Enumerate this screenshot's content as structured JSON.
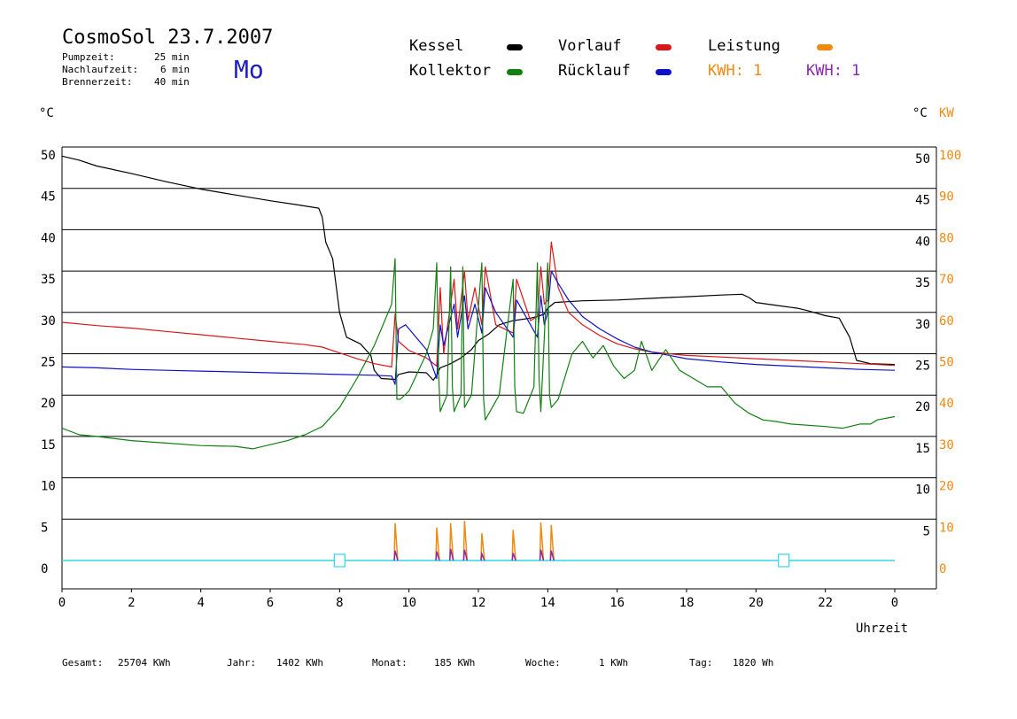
{
  "header": {
    "title": "CosmoSol 23.7.2007",
    "day": "Mo",
    "params": [
      {
        "label": "Pumpzeit:",
        "value": "25 min"
      },
      {
        "label": "Nachlaufzeit:",
        "value": "6 min"
      },
      {
        "label": "Brennerzeit:",
        "value": "40 min"
      }
    ]
  },
  "legend": {
    "kessel": "Kessel",
    "kollektor": "Kollektor",
    "vorlauf": "Vorlauf",
    "ruecklauf": "Rücklauf",
    "leistung": "Leistung",
    "kwh1": "KWH: 1",
    "kwh2": "KWH: 1"
  },
  "axes": {
    "left_unit": "°C",
    "right_unit": "°C",
    "right_unit2": "KW",
    "x_label": "Uhrzeit"
  },
  "colors": {
    "kessel": "#000000",
    "vorlauf": "#d81818",
    "ruecklauf": "#1010c8",
    "kollektor": "#108010",
    "leistung": "#f08a10",
    "leistung2": "#8a2aa8",
    "baseline": "#30d8e0"
  },
  "footer": {
    "gesamt_label": "Gesamt:",
    "gesamt_value": "25704 KWh",
    "jahr_label": "Jahr:",
    "jahr_value": "1402 KWh",
    "monat_label": "Monat:",
    "monat_value": "185 KWh",
    "woche_label": "Woche:",
    "woche_value": "1 KWh",
    "tag_label": "Tag:",
    "tag_value": "1820 Wh"
  },
  "chart_data": {
    "type": "line",
    "title": "CosmoSol 23.7.2007",
    "xlabel": "Uhrzeit",
    "ylabel": "°C",
    "xlim": [
      0,
      24
    ],
    "ylim": [
      -3.5,
      50
    ],
    "grid": true,
    "x_ticks": [
      "0",
      "2",
      "4",
      "6",
      "8",
      "10",
      "12",
      "14",
      "16",
      "18",
      "20",
      "22",
      "0"
    ],
    "y_ticks_left": [
      "0",
      "5",
      "10",
      "15",
      "20",
      "25",
      "30",
      "35",
      "40",
      "45",
      "50"
    ],
    "y_ticks_right": [
      "5",
      "10",
      "15",
      "20",
      "25",
      "30",
      "35",
      "40",
      "45",
      "50"
    ],
    "y_ticks_right2": [
      "0",
      "10",
      "20",
      "30",
      "40",
      "50",
      "60",
      "70",
      "80",
      "90",
      "100"
    ],
    "series": [
      {
        "name": "Kessel",
        "x": [
          0,
          0.5,
          1,
          2,
          3,
          4,
          5,
          6,
          6.8,
          7.4,
          7.5,
          7.6,
          7.8,
          8.0,
          8.2,
          8.6,
          8.9,
          9.0,
          9.2,
          9.6,
          9.7,
          10,
          10.5,
          10.7,
          10.8,
          10.9,
          11.2,
          11.5,
          11.8,
          12,
          12.3,
          12.6,
          13,
          13.5,
          13.7,
          13.9,
          14.0,
          14.2,
          15,
          16,
          17,
          18,
          19,
          19.6,
          19.8,
          20.0,
          20.5,
          21.2,
          21.5,
          22,
          22.4,
          22.7,
          22.9,
          23.3,
          24
        ],
        "values": [
          48.9,
          48.4,
          47.7,
          46.8,
          45.8,
          44.9,
          44.2,
          43.5,
          43.0,
          42.6,
          41.5,
          38.5,
          36.5,
          30,
          27.0,
          26.2,
          24.8,
          23.0,
          22.0,
          21.9,
          22.5,
          22.8,
          22.7,
          21.8,
          22.4,
          23.3,
          23.8,
          24.5,
          25.5,
          26.6,
          27.4,
          28.5,
          29.0,
          29.3,
          29.5,
          29.8,
          30.5,
          31.2,
          31.4,
          31.5,
          31.7,
          31.9,
          32.1,
          32.2,
          31.8,
          31.2,
          30.9,
          30.5,
          30.2,
          29.6,
          29.3,
          27.0,
          24.2,
          23.8,
          23.7
        ]
      },
      {
        "name": "Vorlauf",
        "x": [
          0,
          1,
          2,
          3,
          4,
          5,
          6,
          7,
          7.5,
          8.0,
          8.5,
          9.0,
          9.5,
          9.6,
          9.7,
          10,
          10.5,
          10.8,
          10.9,
          11.0,
          11.3,
          11.4,
          11.6,
          11.7,
          11.9,
          12.1,
          12.2,
          12.5,
          13.0,
          13.1,
          13.5,
          13.7,
          13.8,
          13.9,
          14.0,
          14.1,
          14.3,
          14.6,
          15,
          15.5,
          16,
          16.5,
          17,
          18,
          19,
          20,
          21,
          22,
          23,
          24
        ],
        "values": [
          28.8,
          28.4,
          28.1,
          27.7,
          27.3,
          26.9,
          26.5,
          26.1,
          25.8,
          25.1,
          24.4,
          23.8,
          23.4,
          29.8,
          26.5,
          25.4,
          24.5,
          23.5,
          33.0,
          25.0,
          34.0,
          28.0,
          35.0,
          29.0,
          33.0,
          28.5,
          35.5,
          28.5,
          27.5,
          34.0,
          29.0,
          29.5,
          35.5,
          31.0,
          31.5,
          38.5,
          33.0,
          30.0,
          28.5,
          27.2,
          26.2,
          25.6,
          25.2,
          24.8,
          24.6,
          24.4,
          24.2,
          24.0,
          23.8,
          23.6
        ]
      },
      {
        "name": "Rücklauf",
        "x": [
          0,
          1,
          2,
          3,
          4,
          5,
          6,
          7,
          8,
          9,
          9.5,
          9.6,
          9.7,
          9.9,
          10.5,
          10.8,
          10.9,
          11.0,
          11.3,
          11.4,
          11.6,
          11.7,
          11.9,
          12.1,
          12.2,
          12.5,
          13.0,
          13.1,
          13.5,
          13.7,
          13.8,
          13.9,
          14.0,
          14.1,
          14.3,
          14.6,
          15,
          15.5,
          16,
          16.5,
          17,
          18,
          19,
          20,
          21,
          22,
          23,
          24
        ],
        "values": [
          23.4,
          23.3,
          23.1,
          23.0,
          22.9,
          22.8,
          22.7,
          22.6,
          22.5,
          22.4,
          22.3,
          21.3,
          28.0,
          28.5,
          25.5,
          22.0,
          28.5,
          26.0,
          31.0,
          27.0,
          32.0,
          28.0,
          31.0,
          27.5,
          33.0,
          30.0,
          27.0,
          31.5,
          28.5,
          27.0,
          32.0,
          28.5,
          30.0,
          35.0,
          33.5,
          31.5,
          29.5,
          28.0,
          26.8,
          25.8,
          25.2,
          24.4,
          24.0,
          23.7,
          23.5,
          23.3,
          23.1,
          23.0
        ]
      },
      {
        "name": "Kollektor",
        "x": [
          0,
          0.5,
          1,
          2,
          3,
          4,
          5,
          5.5,
          6,
          6.5,
          7,
          7.5,
          8,
          8.5,
          9,
          9.3,
          9.5,
          9.6,
          9.65,
          9.75,
          10,
          10.5,
          10.7,
          10.8,
          10.85,
          10.9,
          11.1,
          11.2,
          11.25,
          11.3,
          11.5,
          11.55,
          11.6,
          11.8,
          12.1,
          12.15,
          12.2,
          12.6,
          13.0,
          13.05,
          13.1,
          13.3,
          13.6,
          13.7,
          13.75,
          13.8,
          14.0,
          14.05,
          14.1,
          14.3,
          14.7,
          15.0,
          15.3,
          15.6,
          15.9,
          16.2,
          16.5,
          16.7,
          17.0,
          17.4,
          17.8,
          18.2,
          18.6,
          19.0,
          19.4,
          19.8,
          20.2,
          20.6,
          21.0,
          22,
          22.5,
          23,
          23.3,
          23.5,
          24
        ],
        "values": [
          16.0,
          15.2,
          15.0,
          14.5,
          14.2,
          13.9,
          13.8,
          13.5,
          14.0,
          14.5,
          15.2,
          16.2,
          18.5,
          22.0,
          26.0,
          29.0,
          31.0,
          36.5,
          19.5,
          19.5,
          20.5,
          25.0,
          28.0,
          36.0,
          23.0,
          18.0,
          20.0,
          35.5,
          21.0,
          18.0,
          20.0,
          35.5,
          18.5,
          20.0,
          36.0,
          19.5,
          17.0,
          20.0,
          34.0,
          21.0,
          18.0,
          17.8,
          21.0,
          36.0,
          22.0,
          18.0,
          36.0,
          20.0,
          18.5,
          19.5,
          25.0,
          26.5,
          24.5,
          26.0,
          23.5,
          22.0,
          23.0,
          26.5,
          23.0,
          25.5,
          23.0,
          22.0,
          21.0,
          21.0,
          19.0,
          17.8,
          17.0,
          16.8,
          16.5,
          16.2,
          16.0,
          16.5,
          16.5,
          17.0,
          17.4
        ]
      },
      {
        "name": "Leistung",
        "x": [
          9.6,
          10.8,
          11.2,
          11.6,
          12.1,
          13.0,
          13.8,
          14.1
        ],
        "values": [
          4.5,
          4.0,
          4.5,
          4.8,
          3.3,
          3.7,
          4.6,
          4.3
        ]
      },
      {
        "name": "KWH",
        "x": [
          9.6,
          10.8,
          11.2,
          11.6,
          12.1,
          13.0,
          13.8,
          14.1
        ],
        "values": [
          1.2,
          1.1,
          1.4,
          1.3,
          0.8,
          0.9,
          1.3,
          1.2
        ]
      }
    ]
  }
}
